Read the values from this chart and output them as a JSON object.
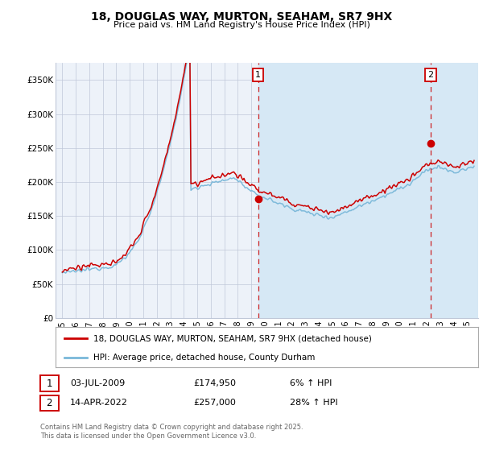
{
  "title": "18, DOUGLAS WAY, MURTON, SEAHAM, SR7 9HX",
  "subtitle": "Price paid vs. HM Land Registry's House Price Index (HPI)",
  "ylabel_ticks": [
    "£0",
    "£50K",
    "£100K",
    "£150K",
    "£200K",
    "£250K",
    "£300K",
    "£350K"
  ],
  "ytick_vals": [
    0,
    50000,
    100000,
    150000,
    200000,
    250000,
    300000,
    350000
  ],
  "ylim": [
    0,
    375000
  ],
  "xlim_start": 1994.5,
  "xlim_end": 2025.8,
  "marker1_x": 2009.5,
  "marker1_y": 174950,
  "marker1_label": "1",
  "marker1_date": "03-JUL-2009",
  "marker1_price": "£174,950",
  "marker1_hpi": "6% ↑ HPI",
  "marker2_x": 2022.28,
  "marker2_y": 257000,
  "marker2_label": "2",
  "marker2_date": "14-APR-2022",
  "marker2_price": "£257,000",
  "marker2_hpi": "28% ↑ HPI",
  "shade_start": 2009.5,
  "shade_end": 2025.8,
  "hpi_line_color": "#7ab8d9",
  "price_line_color": "#cc0000",
  "background_color": "#ffffff",
  "plot_background": "#edf2f9",
  "shaded_region_color": "#d6e8f5",
  "grid_color": "#c0c8d8",
  "legend_line1": "18, DOUGLAS WAY, MURTON, SEAHAM, SR7 9HX (detached house)",
  "legend_line2": "HPI: Average price, detached house, County Durham",
  "footer": "Contains HM Land Registry data © Crown copyright and database right 2025.\nThis data is licensed under the Open Government Licence v3.0."
}
